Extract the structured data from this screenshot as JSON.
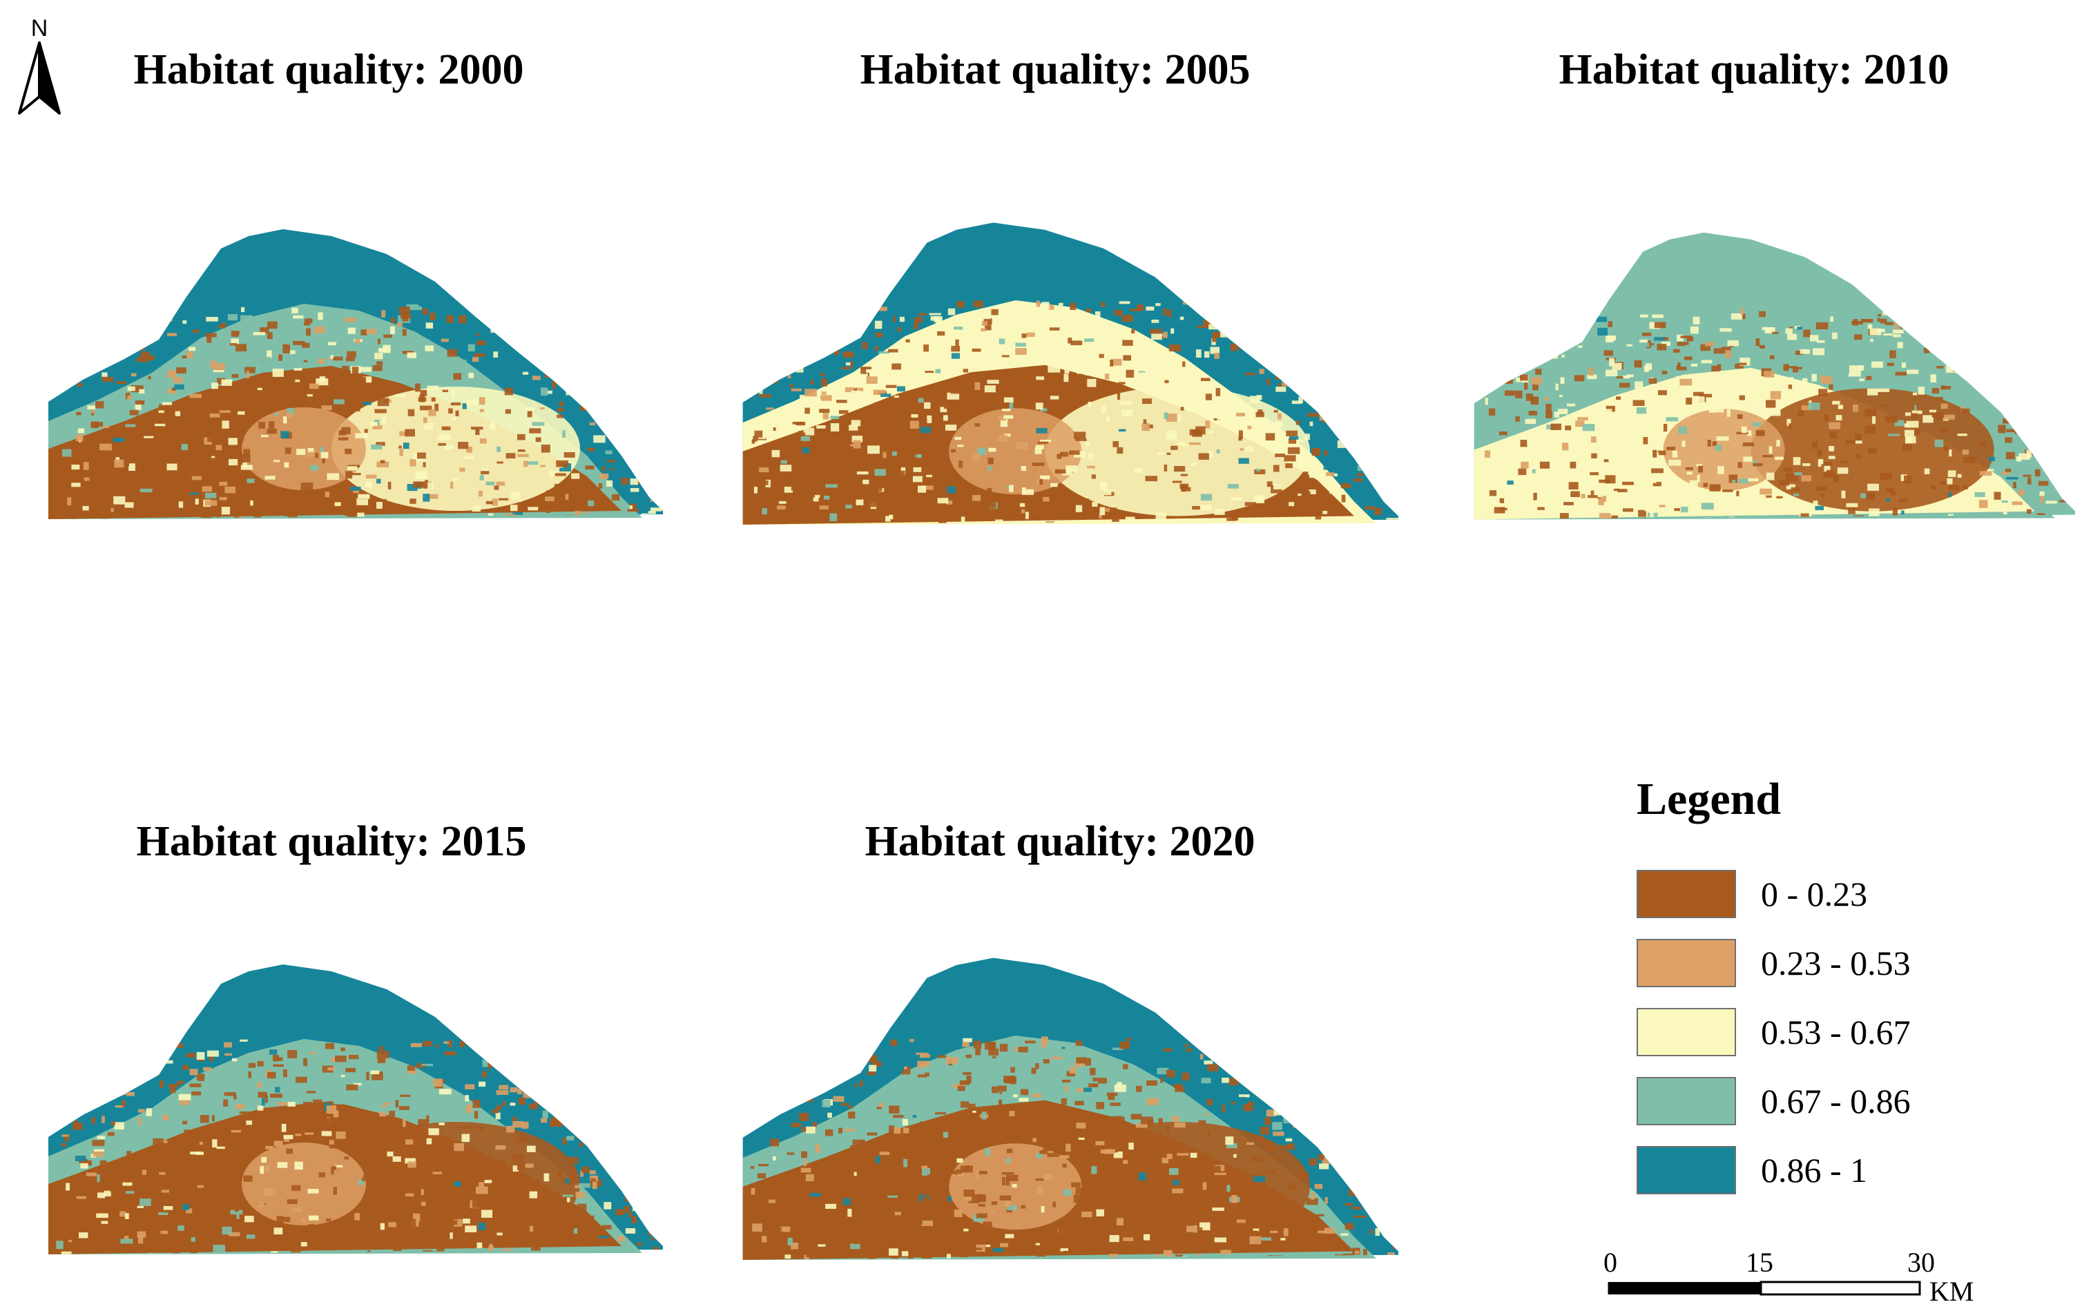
{
  "panels": [
    {
      "title": "Habitat quality: 2000",
      "year": 2000
    },
    {
      "title": "Habitat quality: 2005",
      "year": 2005
    },
    {
      "title": "Habitat quality: 2010",
      "year": 2010
    },
    {
      "title": "Habitat quality: 2015",
      "year": 2015
    },
    {
      "title": "Habitat quality: 2020",
      "year": 2020
    }
  ],
  "north_arrow": {
    "label": "N"
  },
  "legend": {
    "title": "Legend",
    "items": [
      {
        "label": "0 - 0.23",
        "color": "#a85a1e"
      },
      {
        "label": "0.23 - 0.53",
        "color": "#dda065"
      },
      {
        "label": "0.53 - 0.67",
        "color": "#fbf8bd"
      },
      {
        "label": "0.67 - 0.86",
        "color": "#7fbfaa"
      },
      {
        "label": "0.86 - 1",
        "color": "#16859a"
      }
    ]
  },
  "scale_bar": {
    "tick_labels": [
      "0",
      "15",
      "30"
    ],
    "unit": "KM"
  }
}
